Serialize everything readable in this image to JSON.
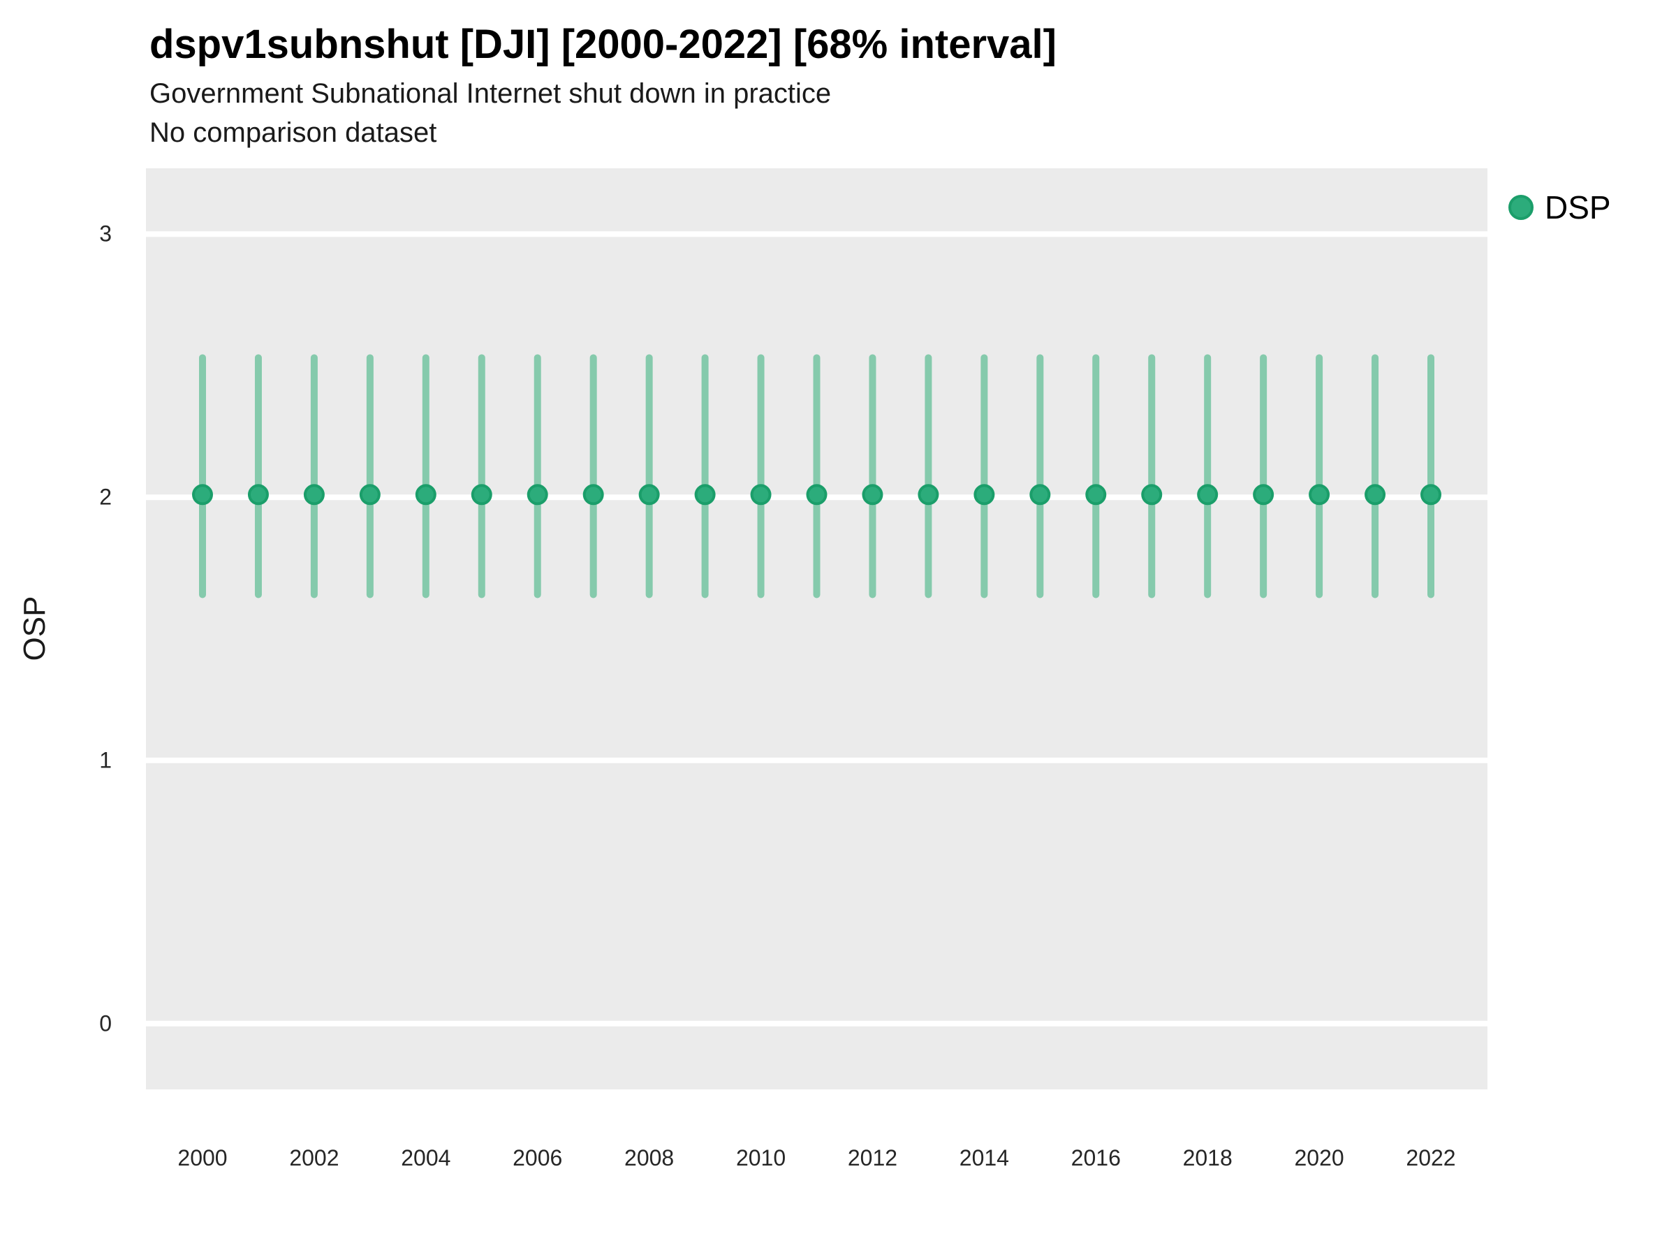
{
  "header": {
    "title": "dspv1subnshut [DJI] [2000-2022] [68% interval]",
    "subtitle_line1": "Government Subnational Internet shut down in practice",
    "subtitle_line2": "No comparison dataset"
  },
  "legend": {
    "position": "top-right",
    "items": [
      {
        "label": "DSP",
        "marker": "circle-icon",
        "color": "#2CAC7B",
        "border_color": "#1B9E6A"
      }
    ]
  },
  "axes": {
    "y_label": "OSP",
    "x_label": "",
    "y_ticks": [
      0,
      1,
      2,
      3
    ],
    "x_ticks": [
      2000,
      2002,
      2004,
      2006,
      2008,
      2010,
      2012,
      2014,
      2016,
      2018,
      2020,
      2022
    ]
  },
  "colors": {
    "panel_background": "#EBEBEB",
    "gridline": "#FFFFFF",
    "point_fill": "#2CAC7B",
    "point_stroke": "#1B9E6A",
    "interval_line": "#20AA6E",
    "interval_opacity": 0.5,
    "text": "#1a1a1a"
  },
  "chart_data": {
    "type": "scatter",
    "title": "dspv1subnshut [DJI] [2000-2022] [68% interval]",
    "subtitle": "Government Subnational Internet shut down in practice",
    "note": "No comparison dataset",
    "xlabel": "",
    "ylabel": "OSP",
    "ylim": [
      -0.25,
      3.25
    ],
    "grid": "major-horizontal",
    "legend_position": "top-right",
    "interval_label": "68% interval",
    "x": [
      2000,
      2001,
      2002,
      2003,
      2004,
      2005,
      2006,
      2007,
      2008,
      2009,
      2010,
      2011,
      2012,
      2013,
      2014,
      2015,
      2016,
      2017,
      2018,
      2019,
      2020,
      2021,
      2022
    ],
    "series": [
      {
        "name": "DSP",
        "values": [
          2.01,
          2.01,
          2.01,
          2.01,
          2.01,
          2.01,
          2.01,
          2.01,
          2.01,
          2.01,
          2.01,
          2.01,
          2.01,
          2.01,
          2.01,
          2.01,
          2.01,
          2.01,
          2.01,
          2.01,
          2.01,
          2.01,
          2.01
        ],
        "interval_low": [
          1.63,
          1.63,
          1.63,
          1.63,
          1.63,
          1.63,
          1.63,
          1.63,
          1.63,
          1.63,
          1.63,
          1.63,
          1.63,
          1.63,
          1.63,
          1.63,
          1.63,
          1.63,
          1.63,
          1.63,
          1.63,
          1.63,
          1.63
        ],
        "interval_high": [
          2.53,
          2.53,
          2.53,
          2.53,
          2.53,
          2.53,
          2.53,
          2.53,
          2.53,
          2.53,
          2.53,
          2.53,
          2.53,
          2.53,
          2.53,
          2.53,
          2.53,
          2.53,
          2.53,
          2.53,
          2.53,
          2.53,
          2.53
        ]
      }
    ]
  }
}
